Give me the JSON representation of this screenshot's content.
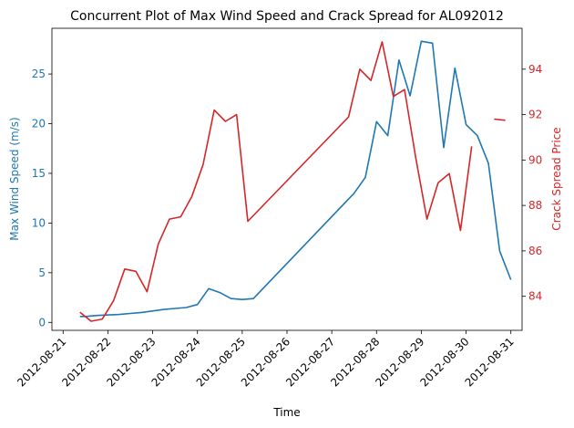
{
  "chart_data": {
    "type": "line",
    "title": "Concurrent Plot of Max Wind Speed and Crack Spread for AL092012",
    "xlabel": "Time",
    "ylabel_left": "Max Wind Speed (m/s)",
    "ylabel_right": "Crack Spread Price",
    "xlim": [
      "2012-08-20T18:00",
      "2012-08-31T06:00"
    ],
    "ylim_left": [
      -0.8,
      29.6
    ],
    "ylim_right": [
      82.5,
      95.8
    ],
    "x_ticks": [
      "2012-08-21",
      "2012-08-22",
      "2012-08-23",
      "2012-08-24",
      "2012-08-25",
      "2012-08-26",
      "2012-08-27",
      "2012-08-28",
      "2012-08-29",
      "2012-08-30",
      "2012-08-31"
    ],
    "y_ticks_left": [
      0,
      5,
      10,
      15,
      20,
      25
    ],
    "y_ticks_right": [
      84,
      86,
      88,
      90,
      92,
      94
    ],
    "grid": false,
    "colors": {
      "left": "#1f77b4",
      "right": "#d62728"
    },
    "series": [
      {
        "name": "Max Wind Speed",
        "axis": "left",
        "color": "#1f77b4",
        "points": [
          [
            "2012-08-21T09:00",
            0.6
          ],
          [
            "2012-08-21T12:00",
            0.6
          ],
          [
            "2012-08-21T18:00",
            0.7
          ],
          [
            "2012-08-22T06:00",
            0.8
          ],
          [
            "2012-08-22T12:00",
            0.9
          ],
          [
            "2012-08-22T18:00",
            1.0
          ],
          [
            "2012-08-23T06:00",
            1.3
          ],
          [
            "2012-08-23T12:00",
            1.4
          ],
          [
            "2012-08-23T18:00",
            1.5
          ],
          [
            "2012-08-24T00:00",
            1.8
          ],
          [
            "2012-08-24T06:00",
            3.4
          ],
          [
            "2012-08-24T12:00",
            3.0
          ],
          [
            "2012-08-24T18:00",
            2.4
          ],
          [
            "2012-08-25T00:00",
            2.3
          ],
          [
            "2012-08-25T06:00",
            2.4
          ],
          [
            "2012-08-27T12:00",
            13.0
          ],
          [
            "2012-08-27T18:00",
            14.6
          ],
          [
            "2012-08-28T00:00",
            20.2
          ],
          [
            "2012-08-28T06:00",
            18.8
          ],
          [
            "2012-08-28T12:00",
            26.4
          ],
          [
            "2012-08-28T18:00",
            22.8
          ],
          [
            "2012-08-29T00:00",
            28.3
          ],
          [
            "2012-08-29T06:00",
            28.1
          ],
          [
            "2012-08-29T12:00",
            17.6
          ],
          [
            "2012-08-29T18:00",
            25.6
          ],
          [
            "2012-08-30T00:00",
            19.9
          ],
          [
            "2012-08-30T06:00",
            18.8
          ],
          [
            "2012-08-30T12:00",
            16.0
          ],
          [
            "2012-08-30T18:00",
            7.2
          ],
          [
            "2012-08-31T00:00",
            4.3
          ]
        ]
      },
      {
        "name": "Crack Spread Price",
        "axis": "right",
        "color": "#d62728",
        "segments": [
          [
            [
              "2012-08-21T09:00",
              83.3
            ],
            [
              "2012-08-21T15:00",
              82.9
            ],
            [
              "2012-08-21T21:00",
              83.0
            ],
            [
              "2012-08-22T03:00",
              83.8
            ],
            [
              "2012-08-22T09:00",
              85.2
            ],
            [
              "2012-08-22T15:00",
              85.1
            ],
            [
              "2012-08-22T21:00",
              84.2
            ],
            [
              "2012-08-23T03:00",
              86.3
            ],
            [
              "2012-08-23T09:00",
              87.4
            ],
            [
              "2012-08-23T15:00",
              87.5
            ],
            [
              "2012-08-23T21:00",
              88.4
            ],
            [
              "2012-08-24T03:00",
              89.8
            ],
            [
              "2012-08-24T09:00",
              92.2
            ],
            [
              "2012-08-24T15:00",
              91.7
            ],
            [
              "2012-08-24T21:00",
              92.0
            ],
            [
              "2012-08-25T03:00",
              87.3
            ],
            [
              "2012-08-27T09:00",
              91.9
            ],
            [
              "2012-08-27T15:00",
              94.0
            ],
            [
              "2012-08-27T21:00",
              93.5
            ],
            [
              "2012-08-28T03:00",
              95.2
            ],
            [
              "2012-08-28T09:00",
              92.8
            ],
            [
              "2012-08-28T15:00",
              93.1
            ],
            [
              "2012-08-28T21:00",
              90.1
            ],
            [
              "2012-08-29T03:00",
              87.4
            ],
            [
              "2012-08-29T09:00",
              89.0
            ],
            [
              "2012-08-29T15:00",
              89.4
            ],
            [
              "2012-08-29T21:00",
              86.9
            ],
            [
              "2012-08-30T03:00",
              90.6
            ]
          ],
          [
            [
              "2012-08-30T15:00",
              91.8
            ],
            [
              "2012-08-30T21:00",
              91.75
            ]
          ]
        ]
      }
    ]
  }
}
